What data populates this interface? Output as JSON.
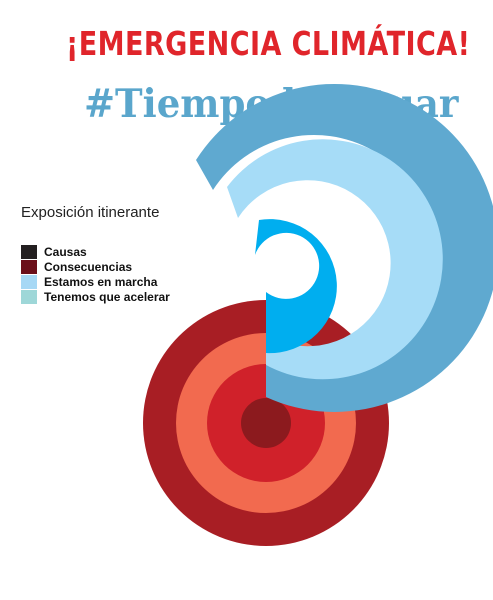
{
  "header": {
    "title": "¡EMERGENCIA CLIMÁTICA!",
    "hashtag": "#TiempodeActuar"
  },
  "legend": {
    "title": "Exposición itinerante",
    "items": [
      {
        "label": "Causas",
        "color": "#231f20"
      },
      {
        "label": "Consecuencias",
        "color": "#6b0f1a"
      },
      {
        "label": "Estamos en marcha",
        "color": "#a6d8f5"
      },
      {
        "label": "Tenemos que acelerar",
        "color": "#9ed7d8"
      }
    ]
  },
  "colors": {
    "title_red": "#e0252b",
    "hashtag_blue": "#5aa6cc",
    "red_outer": "#a81e24",
    "red_salmon": "#f26a4f",
    "red_mid": "#d0212a",
    "red_core": "#8c1a1e",
    "blue_outer": "#5fa9d0",
    "blue_light": "#a6dcf7",
    "blue_bright": "#00aeef"
  }
}
